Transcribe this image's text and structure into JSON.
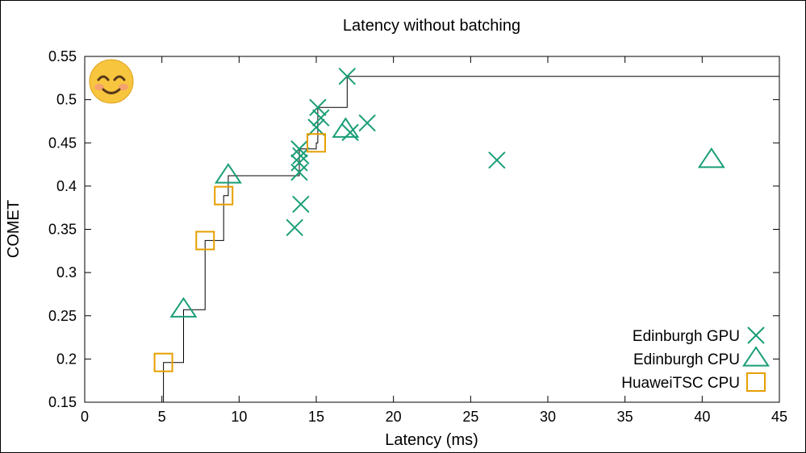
{
  "chart_data": {
    "type": "scatter",
    "title": "Latency without batching",
    "xlabel": "Latency (ms)",
    "ylabel": "COMET",
    "xlim": [
      0,
      45
    ],
    "ylim": [
      0.15,
      0.55
    ],
    "xticks": [
      0,
      5,
      10,
      15,
      20,
      25,
      30,
      35,
      40,
      45
    ],
    "xtick_labels": [
      "0",
      "5",
      "10",
      "15",
      "20",
      "25",
      "30",
      "35",
      "40",
      "45"
    ],
    "yticks": [
      0.15,
      0.2,
      0.25,
      0.3,
      0.35,
      0.4,
      0.45,
      0.5,
      0.55
    ],
    "ytick_labels": [
      "0.15",
      "0.2",
      "0.25",
      "0.3",
      "0.35",
      "0.4",
      "0.45",
      "0.5",
      "0.55"
    ],
    "grid": false,
    "legend_position": "bottom-right",
    "decoration": "smiling-face-emoji",
    "series": [
      {
        "name": "Edinburgh GPU",
        "marker": "x",
        "color": "#1a9e77",
        "points": [
          [
            13.6,
            0.352
          ],
          [
            14.0,
            0.379
          ],
          [
            13.9,
            0.416
          ],
          [
            13.9,
            0.427
          ],
          [
            14.0,
            0.435
          ],
          [
            13.9,
            0.443
          ],
          [
            15.0,
            0.468
          ],
          [
            15.3,
            0.479
          ],
          [
            15.1,
            0.491
          ],
          [
            17.0,
            0.527
          ],
          [
            17.2,
            0.462
          ],
          [
            18.3,
            0.473
          ],
          [
            26.7,
            0.43
          ]
        ]
      },
      {
        "name": "Edinburgh CPU",
        "marker": "triangle",
        "color": "#1a9e77",
        "points": [
          [
            6.4,
            0.257
          ],
          [
            9.3,
            0.412
          ],
          [
            16.9,
            0.465
          ],
          [
            40.6,
            0.43
          ]
        ]
      },
      {
        "name": "HuaweiTSC CPU",
        "marker": "square",
        "color": "#e69f00",
        "points": [
          [
            5.1,
            0.196
          ],
          [
            7.8,
            0.337
          ],
          [
            9.0,
            0.389
          ],
          [
            15.0,
            0.45
          ]
        ]
      }
    ],
    "frontier": {
      "color": "#000000",
      "points": [
        [
          5.1,
          0.15
        ],
        [
          5.1,
          0.196
        ],
        [
          6.4,
          0.196
        ],
        [
          6.4,
          0.257
        ],
        [
          7.8,
          0.257
        ],
        [
          7.8,
          0.337
        ],
        [
          9.0,
          0.337
        ],
        [
          9.0,
          0.389
        ],
        [
          9.3,
          0.389
        ],
        [
          9.3,
          0.412
        ],
        [
          13.9,
          0.412
        ],
        [
          13.9,
          0.443
        ],
        [
          15.0,
          0.443
        ],
        [
          15.0,
          0.45
        ],
        [
          15.1,
          0.45
        ],
        [
          15.1,
          0.491
        ],
        [
          17.0,
          0.491
        ],
        [
          17.0,
          0.527
        ],
        [
          45,
          0.527
        ]
      ]
    }
  }
}
